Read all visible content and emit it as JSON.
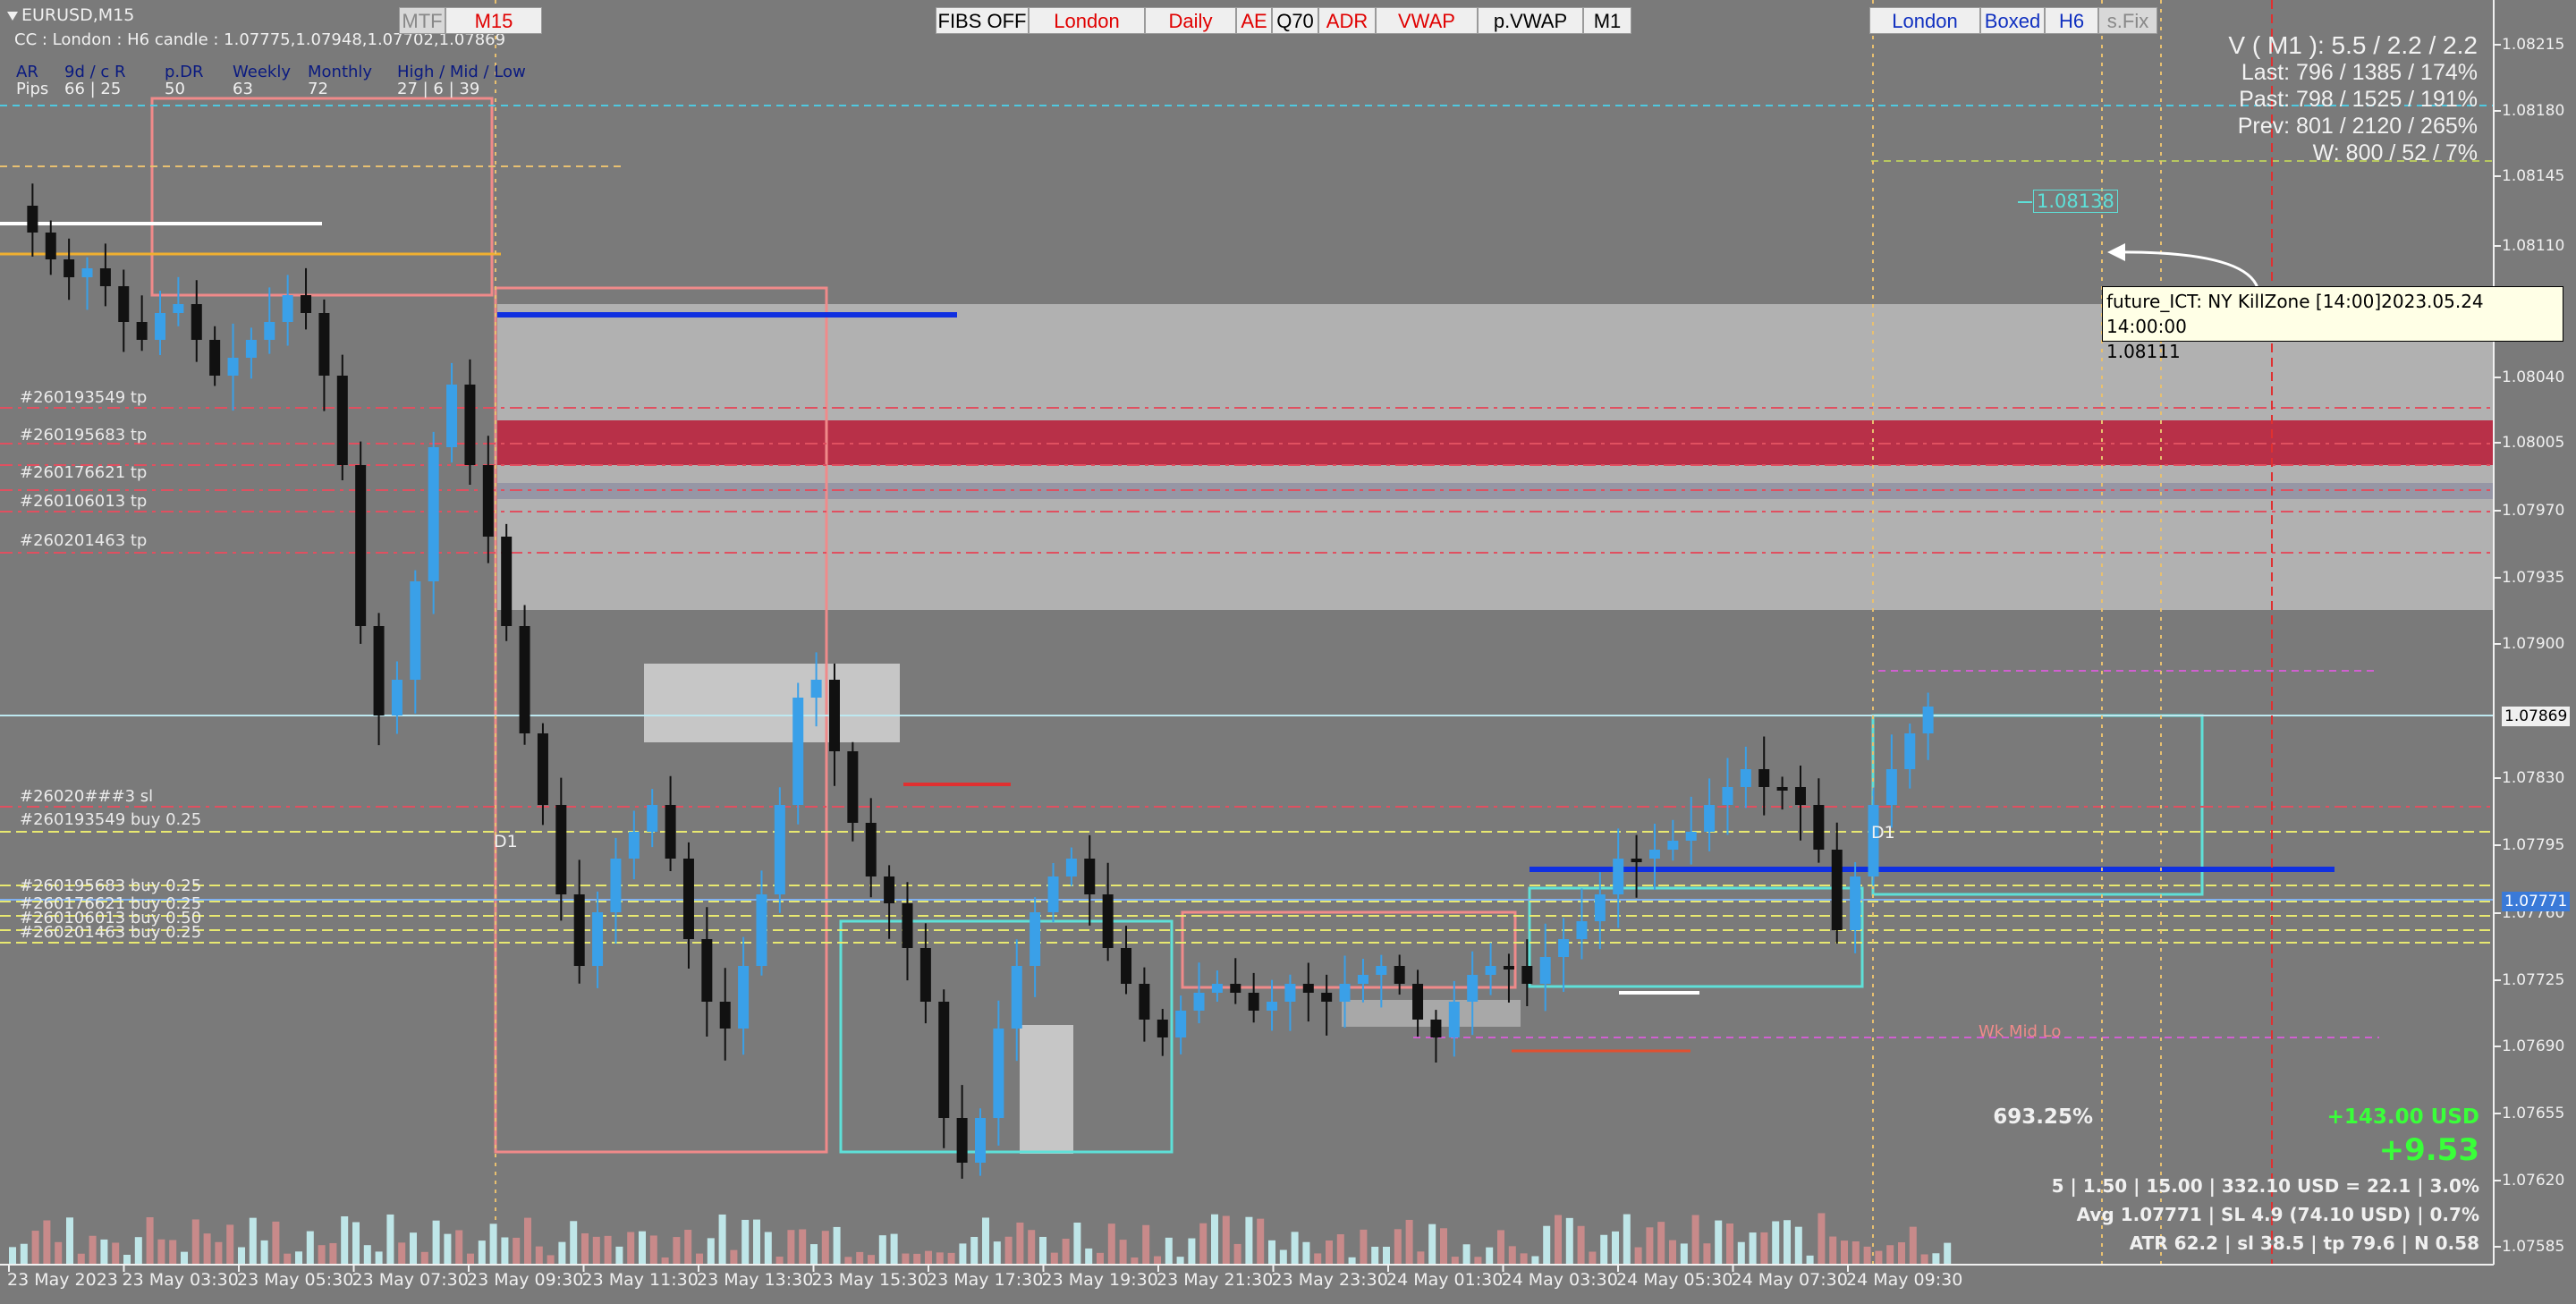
{
  "window": {
    "title": "EURUSD,M15"
  },
  "header": {
    "candle_info": "CC : London : H6 candle : 1.07775,1.07948,1.07702,1.07869"
  },
  "range_table": {
    "row1": [
      "AR",
      "9d / c R",
      "p.DR",
      "Weekly",
      "Monthly",
      "High / Mid / Low"
    ],
    "row2": [
      "Pips",
      "66 | 25",
      "50",
      "63",
      "72",
      "27 | 6 | 39"
    ]
  },
  "toolbar_left": [
    {
      "label": "MTF",
      "style": "gray"
    },
    {
      "label": "M15",
      "style": "red"
    }
  ],
  "toolbar_center": [
    {
      "label": "FIBS OFF",
      "style": "black"
    },
    {
      "label": "London",
      "style": "red"
    },
    {
      "label": "Daily",
      "style": "red"
    },
    {
      "label": "AE",
      "style": "red"
    },
    {
      "label": "Q70",
      "style": "black"
    },
    {
      "label": "ADR",
      "style": "red"
    },
    {
      "label": "VWAP",
      "style": "red"
    },
    {
      "label": "p.VWAP",
      "style": "black"
    },
    {
      "label": "M1",
      "style": "black"
    }
  ],
  "toolbar_right": [
    {
      "label": "London",
      "style": "blue"
    },
    {
      "label": "Boxed",
      "style": "blue"
    },
    {
      "label": "H6",
      "style": "blue"
    },
    {
      "label": "s.Fix",
      "style": "gray"
    }
  ],
  "volatility_panel": [
    "V ( M1 ): 5.5 / 2.2 / 2.2",
    "Last: 796 / 1385 / 174%",
    "Past: 798 / 1525 / 191%",
    "Prev: 801 / 2120 / 265%",
    "W: 800 / 52 / 7%"
  ],
  "order_tags": [
    "#260193549 tp",
    "#260195683 tp",
    "#260176621 tp",
    "#260106013 tp",
    "#260201463 tp",
    "#26020###3 sl",
    "#260193549 buy 0.25",
    "#260195683 buy 0.25",
    "#260176621 buy 0.25",
    "#260106013 buy 0.50",
    "#260201463 buy 0.25"
  ],
  "tooltip": {
    "line1": "future_ICT: NY KillZone [14:00]2023.05.24 14:00:00",
    "line2": "1.08111"
  },
  "price_marker": "1.08138",
  "labels": {
    "d1_left": "D1",
    "d1_right": "D1",
    "wk_mid_lo": "Wk Mid Lo"
  },
  "price_axis": {
    "ticks": [
      "1.08215",
      "1.08180",
      "1.08145",
      "1.08110",
      "1.08040",
      "1.08005",
      "1.07970",
      "1.07935",
      "1.07900",
      "1.07830",
      "1.07795",
      "1.07760",
      "1.07725",
      "1.07690",
      "1.07655",
      "1.07620",
      "1.07585"
    ],
    "current_price": "1.07869",
    "bid_marker": "1.07771"
  },
  "time_axis": {
    "ticks": [
      "23 May 2023",
      "23 May 03:30",
      "23 May 05:30",
      "23 May 07:30",
      "23 May 09:30",
      "23 May 11:30",
      "23 May 13:30",
      "23 May 15:30",
      "23 May 17:30",
      "23 May 19:30",
      "23 May 21:30",
      "23 May 23:30",
      "24 May 01:30",
      "24 May 03:30",
      "24 May 05:30",
      "24 May 07:30",
      "24 May 09:30"
    ]
  },
  "stats": {
    "percent": "693.25%",
    "profit_usd": "+143.00 USD",
    "profit_pips": "+9.53",
    "line1": "5  |  1.50  |  15.00  |  332.10 USD = 22.1  |  3.0%",
    "line2": "Avg 1.07771  |  SL 4.9 (74.10 USD)  |  0.7%",
    "line3": "ATR 62.2  |  sl 38.5  |  tp 79.6  |  N 0.58"
  },
  "colors": {
    "background": "#7a7a7a",
    "bull_candle": "#3aa0e8",
    "bear_candle": "#111111",
    "zone_gray": "#b4b4b4",
    "zone_red": "#b83048",
    "box_salmon": "#f08a8a",
    "box_cyan": "#5ee0d8",
    "profit_green": "#39ff39"
  }
}
